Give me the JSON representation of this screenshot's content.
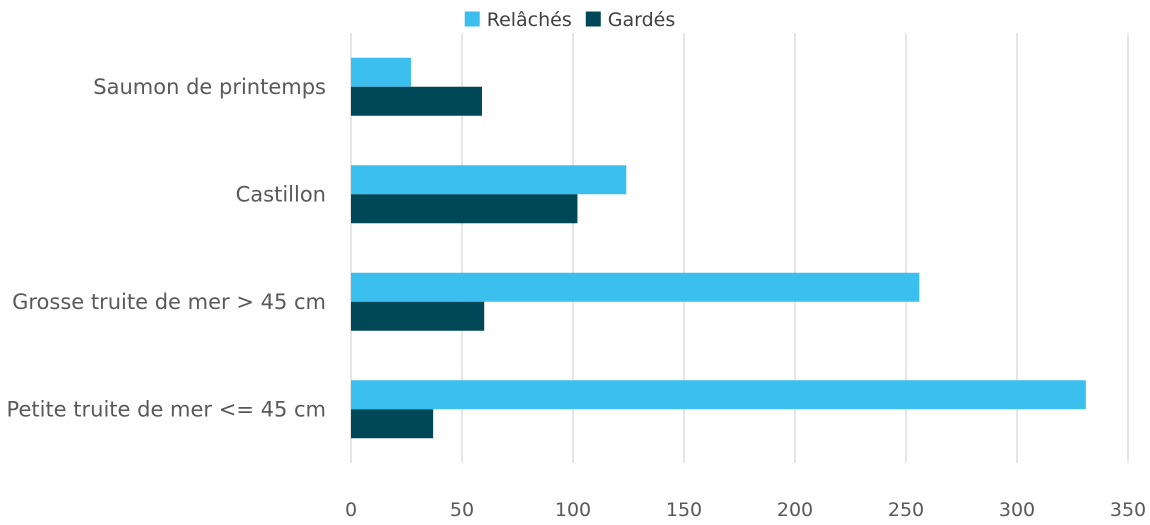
{
  "chart_data": {
    "type": "bar",
    "orientation": "horizontal",
    "categories": [
      "Saumon de printemps",
      "Castillon",
      "Grosse truite de mer > 45 cm",
      "Petite truite de mer <= 45 cm"
    ],
    "series": [
      {
        "name": "Relâchés",
        "color": "#3bbfee",
        "values": [
          27,
          124,
          256,
          331
        ]
      },
      {
        "name": "Gardés",
        "color": "#004857",
        "values": [
          59,
          102,
          60,
          37
        ]
      }
    ],
    "xlim": [
      0,
      350
    ],
    "xticks": [
      0,
      50,
      100,
      150,
      200,
      250,
      300,
      350
    ],
    "title": "",
    "xlabel": "",
    "ylabel": "",
    "grid": "vertical",
    "legend_position": "top"
  }
}
